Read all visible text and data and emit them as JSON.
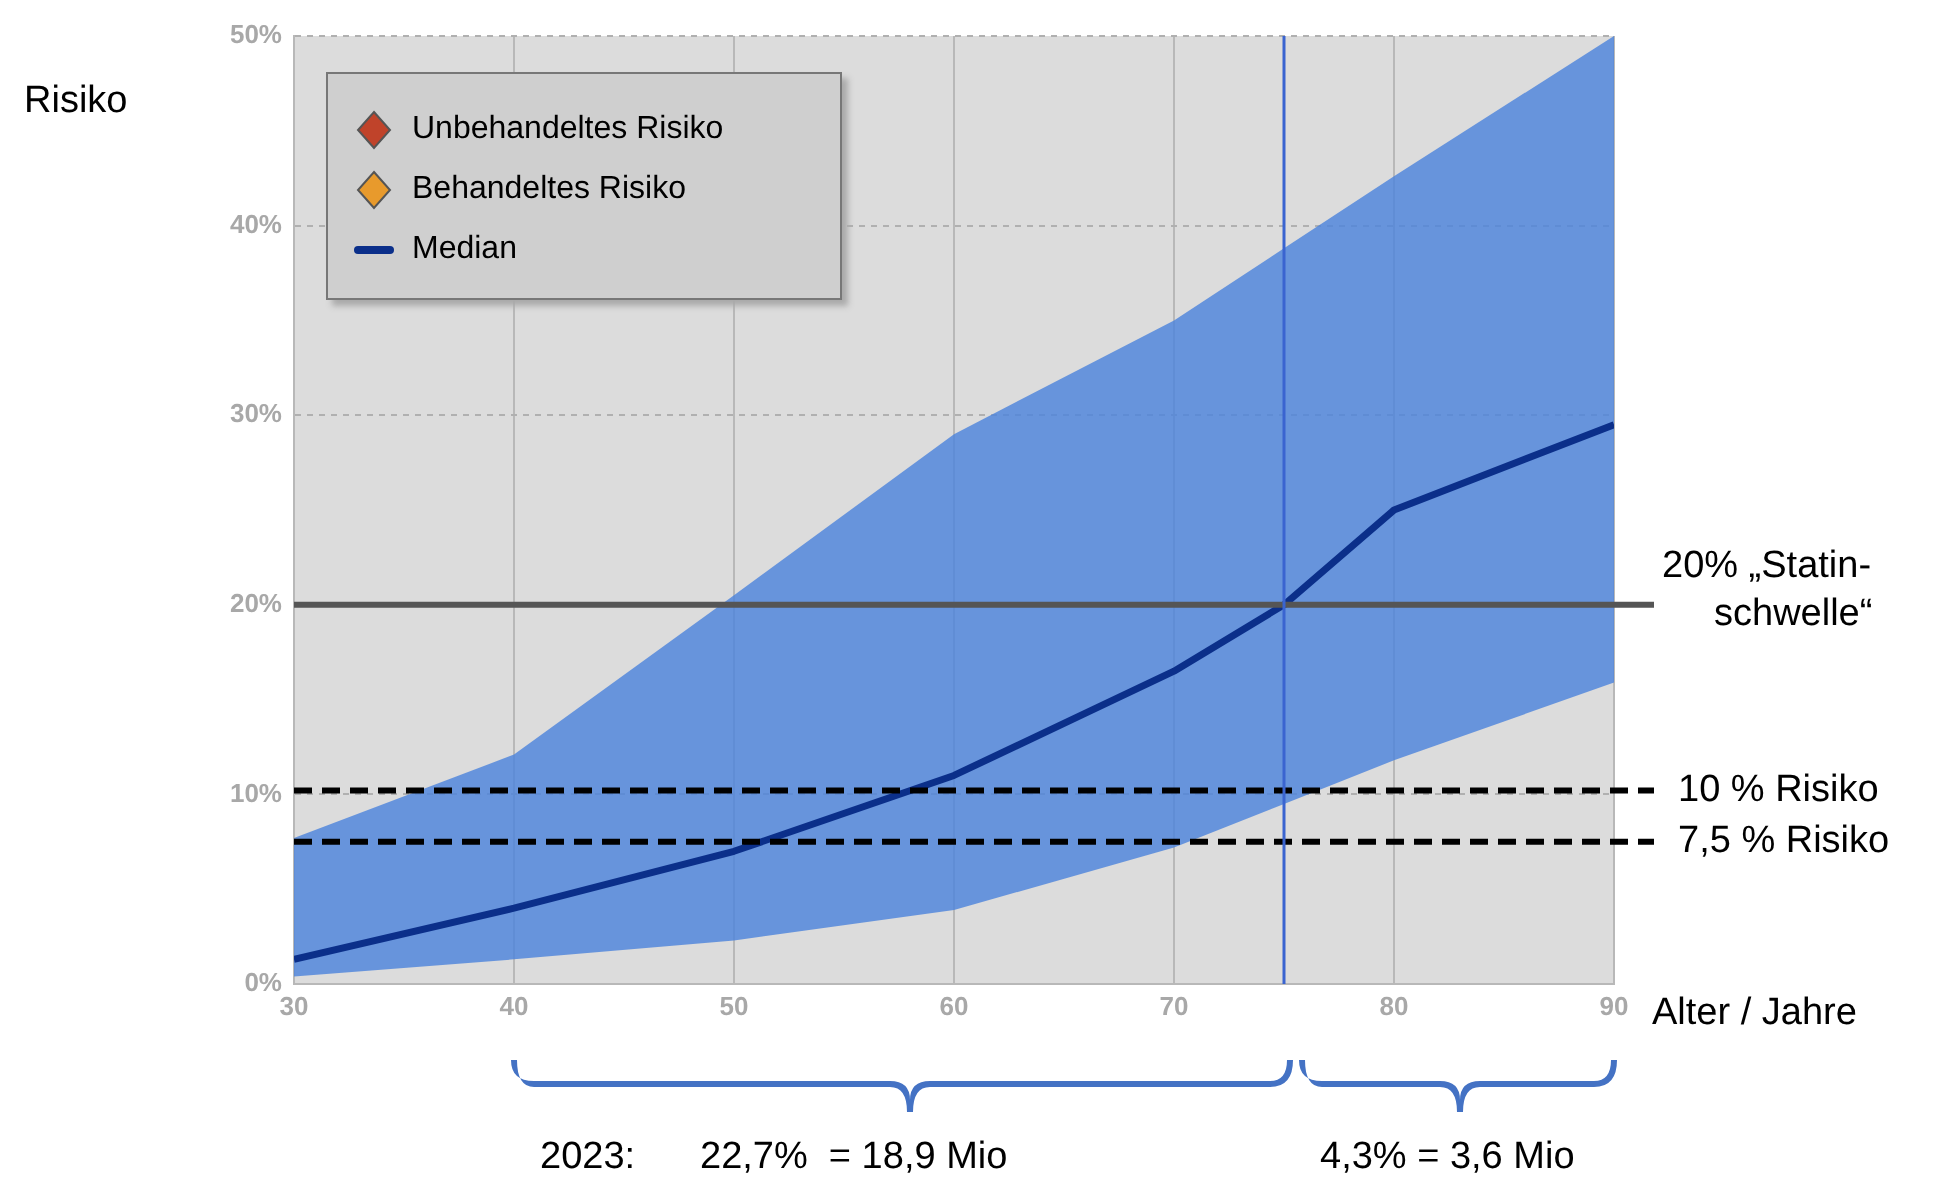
{
  "chart_data": {
    "type": "line",
    "ylabel": "Risiko",
    "xlabel": "Alter / Jahre",
    "x": [
      30,
      40,
      50,
      60,
      70,
      75,
      80,
      90
    ],
    "series": [
      {
        "name": "Unbehandeltes Risiko",
        "type": "scatter",
        "marker": "diamond",
        "color": "#c0432a",
        "values": [
          null,
          null,
          null,
          null,
          null,
          null,
          null,
          null
        ]
      },
      {
        "name": "Behandeltes Risiko",
        "type": "scatter",
        "marker": "diamond",
        "color": "#e89a2c",
        "values": [
          null,
          null,
          null,
          null,
          null,
          null,
          null,
          null
        ]
      },
      {
        "name": "Median",
        "type": "line",
        "marker": "none",
        "color": "#0b2f8a",
        "values": [
          1.3,
          4.0,
          7.0,
          11.0,
          16.5,
          20.0,
          25.0,
          29.5
        ],
        "lower": [
          0.4,
          1.3,
          2.3,
          3.9,
          7.2,
          9.5,
          11.8,
          15.9
        ],
        "upper": [
          7.7,
          12.1,
          20.5,
          29.0,
          35.0,
          38.8,
          42.6,
          50.0
        ]
      }
    ],
    "xlim": [
      30,
      90
    ],
    "xticks": [
      30,
      40,
      50,
      60,
      70,
      80,
      90
    ],
    "ylim": [
      0,
      50
    ],
    "yticks": [
      {
        "value": 0,
        "label": "0%"
      },
      {
        "value": 10,
        "label": "10%"
      },
      {
        "value": 20,
        "label": "20%"
      },
      {
        "value": 30,
        "label": "30%"
      },
      {
        "value": 40,
        "label": "40%"
      },
      {
        "value": 50,
        "label": "50%"
      }
    ],
    "grid": true,
    "legend": "top left",
    "ref_lines": [
      {
        "axis": "y",
        "value": 20,
        "label": "20% „Statin-\nschwelle“",
        "color": "#555555",
        "line_style": "solid"
      },
      {
        "axis": "y",
        "value": 10.2,
        "label": "10 % Risiko",
        "color": "#000000",
        "line_style": "dashed"
      },
      {
        "axis": "y",
        "value": 7.5,
        "label": "7,5 % Risiko",
        "color": "#000000",
        "line_style": "dashed"
      },
      {
        "axis": "x",
        "value": 75,
        "color": "#3a64d0",
        "line_style": "solid"
      }
    ],
    "annotations": [
      "2023:",
      "22,7%  = 18,9 Mio",
      "4,3% = 3,6 Mio"
    ]
  }
}
